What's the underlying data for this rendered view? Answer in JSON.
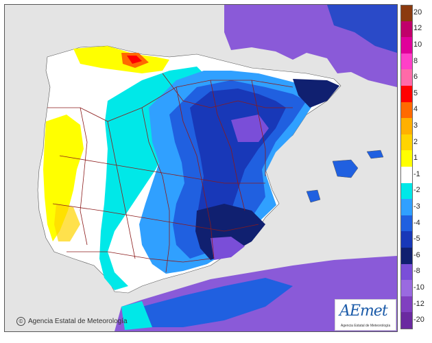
{
  "map": {
    "credit": "Agencia Estatal de Meteorología",
    "logo_text": "AEmet",
    "logo_subtitle": "Agencia Estatal de Meteorología",
    "colors": {
      "sea": "#e4e4e4",
      "land_neutral": "#ffffff",
      "border_line": "#8b1a1a"
    }
  },
  "legend": {
    "labels": [
      "20",
      "12",
      "10",
      "8",
      "6",
      "5",
      "4",
      "3",
      "2",
      "1",
      "-1",
      "-2",
      "-3",
      "-4",
      "-5",
      "-6",
      "-8",
      "-10",
      "-12",
      "-20"
    ],
    "colors": [
      "#8b3a0f",
      "#c0006a",
      "#e0009a",
      "#ff40c8",
      "#ff6aa8",
      "#ff0000",
      "#ff6a00",
      "#ffb000",
      "#ffd400",
      "#ffff00",
      "#ffffff",
      "#00e8e8",
      "#30a0ff",
      "#2060e0",
      "#1838b8",
      "#102070",
      "#7a4ed8",
      "#9a6ae0",
      "#8040c0",
      "#6a2aa0"
    ]
  }
}
